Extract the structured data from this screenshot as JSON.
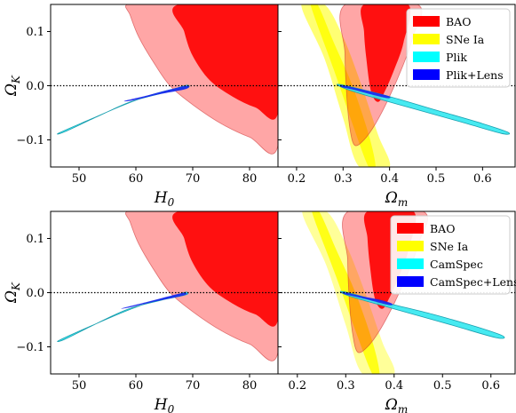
{
  "chart_data": [
    {
      "type": "contour",
      "row": "top",
      "legend_position": "top-right",
      "legend": [
        {
          "label": "BAO",
          "color": "#ff0000"
        },
        {
          "label": "SNe Ia",
          "color": "#ffff00"
        },
        {
          "label": "Plik",
          "color": "#00ffff"
        },
        {
          "label": "Plik+Lens",
          "color": "#0000ff"
        }
      ],
      "panels": [
        {
          "xlabel": "H₀",
          "ylabel": "ΩK",
          "xlim": [
            45,
            85
          ],
          "ylim": [
            -0.15,
            0.15
          ],
          "xticks": [
            "50",
            "60",
            "70",
            "80"
          ],
          "yticks": [
            "−0.1",
            "0.0",
            "0.1"
          ],
          "reference_line_y": 0.0
        },
        {
          "xlabel": "Ωm",
          "ylabel": "",
          "xlim": [
            0.16,
            0.67
          ],
          "ylim": [
            -0.15,
            0.15
          ],
          "xticks": [
            "0.2",
            "0.3",
            "0.4",
            "0.5",
            "0.6"
          ],
          "yticks": [],
          "reference_line_y": 0.0
        }
      ]
    },
    {
      "type": "contour",
      "row": "bottom",
      "legend_position": "top-right",
      "legend": [
        {
          "label": "BAO",
          "color": "#ff0000"
        },
        {
          "label": "SNe Ia",
          "color": "#ffff00"
        },
        {
          "label": "CamSpec",
          "color": "#00ffff"
        },
        {
          "label": "CamSpec+Lens",
          "color": "#0000ff"
        }
      ],
      "panels": [
        {
          "xlabel": "H₀",
          "ylabel": "ΩK",
          "xlim": [
            45,
            85
          ],
          "ylim": [
            -0.15,
            0.15
          ],
          "xticks": [
            "50",
            "60",
            "70",
            "80"
          ],
          "yticks": [
            "−0.1",
            "0.0",
            "0.1"
          ],
          "reference_line_y": 0.0
        },
        {
          "xlabel": "Ωm",
          "ylabel": "",
          "xlim": [
            0.16,
            0.65
          ],
          "ylim": [
            -0.15,
            0.15
          ],
          "xticks": [
            "0.2",
            "0.3",
            "0.4",
            "0.5",
            "0.6"
          ],
          "yticks": [],
          "reference_line_y": 0.0
        }
      ]
    }
  ]
}
